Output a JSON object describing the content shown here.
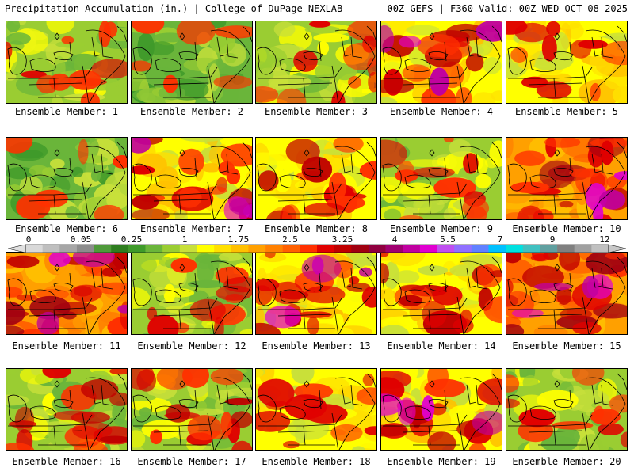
{
  "header": {
    "left": "Precipitation Accumulation (in.) | College of DuPage NEXLAB",
    "right": "00Z GEFS | F360 Valid: 00Z WED OCT 08 2025"
  },
  "panels": [
    {
      "label": "Ensemble Member: 1"
    },
    {
      "label": "Ensemble Member: 2"
    },
    {
      "label": "Ensemble Member: 3"
    },
    {
      "label": "Ensemble Member: 4"
    },
    {
      "label": "Ensemble Member: 5"
    },
    {
      "label": "Ensemble Member: 6"
    },
    {
      "label": "Ensemble Member: 7"
    },
    {
      "label": "Ensemble Member: 8"
    },
    {
      "label": "Ensemble Member: 9"
    },
    {
      "label": "Ensemble Member: 10"
    },
    {
      "label": "Ensemble Member: 11"
    },
    {
      "label": "Ensemble Member: 12"
    },
    {
      "label": "Ensemble Member: 13"
    },
    {
      "label": "Ensemble Member: 14"
    },
    {
      "label": "Ensemble Member: 15"
    },
    {
      "label": "Ensemble Member: 16"
    },
    {
      "label": "Ensemble Member: 17"
    },
    {
      "label": "Ensemble Member: 18"
    },
    {
      "label": "Ensemble Member: 19"
    },
    {
      "label": "Ensemble Member: 20"
    }
  ],
  "colorbar": {
    "ticks": [
      "0",
      "0.05",
      "0.25",
      "1",
      "1.75",
      "2.5",
      "3.25",
      "4",
      "5.5",
      "7",
      "9",
      "12"
    ],
    "colors": [
      "#d9d9d9",
      "#bfbfbf",
      "#a6a6a6",
      "#8c8c8c",
      "#4f9a3a",
      "#2e7d1f",
      "#3f9a2a",
      "#6ab53a",
      "#9acd32",
      "#c8e03a",
      "#ffff00",
      "#ffe000",
      "#ffc000",
      "#ffa000",
      "#ff8000",
      "#ff6000",
      "#ff3000",
      "#e00000",
      "#c00000",
      "#a00010",
      "#900040",
      "#a00070",
      "#c000a0",
      "#e000d0",
      "#c050f0",
      "#9070ff",
      "#6080ff",
      "#00c0ff",
      "#00e0e0",
      "#40c0c0",
      "#60a0a0",
      "#808080",
      "#a0a0a0",
      "#c0c0c0"
    ]
  },
  "legend_colors": {
    "light": "#9acd32",
    "green": "#3f9a2a",
    "yellow": "#ffff00",
    "orange": "#ffa000",
    "red": "#e00000",
    "dark_red": "#a00010",
    "magenta": "#c000a0",
    "cyan": "#00e0e0"
  }
}
